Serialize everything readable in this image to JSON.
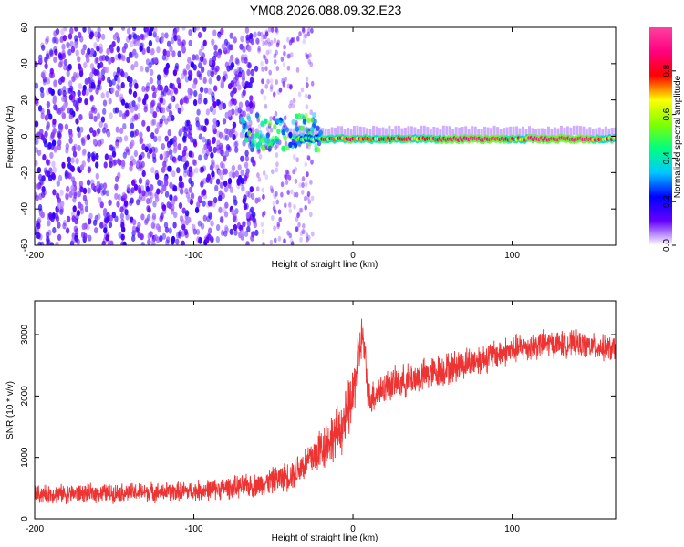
{
  "title": "YM08.2026.088.09.32.E23",
  "chart_data": [
    {
      "type": "heatmap",
      "title": "YM08.2026.088.09.32.E23",
      "xlabel": "Height of straight line (km)",
      "ylabel": "Frequency (Hz)",
      "xlim": [
        -200,
        165
      ],
      "ylim": [
        -60,
        60
      ],
      "xticks": [
        -200,
        -100,
        0,
        100
      ],
      "yticks": [
        60,
        40,
        20,
        0,
        -20,
        -40,
        -60
      ],
      "colorbar": {
        "label": "Normalized spectral amplitude",
        "range": [
          0.0,
          1.0
        ],
        "ticks": [
          0.0,
          0.2,
          0.4,
          0.6,
          0.8
        ],
        "colors": [
          "#ffffff",
          "#6600ff",
          "#0000ff",
          "#00c8ff",
          "#00ff80",
          "#80ff00",
          "#ffff00",
          "#ff0000",
          "#ff0080",
          "#ff40a0"
        ]
      },
      "features": [
        {
          "region": "x -200 to -60",
          "description": "broadband noise",
          "amplitude": 0.1
        },
        {
          "region": "x -70 to -20",
          "center_hz": 2,
          "amplitude": 0.5
        },
        {
          "region": "x -20 to 165",
          "center_hz": -2,
          "amplitude_peak": 0.95
        }
      ]
    },
    {
      "type": "line",
      "title": "",
      "xlabel": "Height of straight line (km)",
      "ylabel": "SNR (10 * v/v)",
      "xlim": [
        -200,
        165
      ],
      "ylim": [
        0,
        3550
      ],
      "xticks": [
        -200,
        -100,
        0,
        100
      ],
      "yticks": [
        0,
        1000,
        2000,
        3000
      ],
      "series": [
        {
          "name": "SNR",
          "color": "#ee3333",
          "x": [
            -200,
            -150,
            -100,
            -60,
            -40,
            -30,
            -20,
            -10,
            -5,
            0,
            3,
            6,
            10,
            20,
            40,
            60,
            80,
            100,
            120,
            140,
            165
          ],
          "y": [
            400,
            420,
            450,
            550,
            700,
            900,
            1150,
            1400,
            1600,
            2000,
            2600,
            3000,
            1950,
            2150,
            2300,
            2450,
            2600,
            2750,
            2850,
            2850,
            2750
          ],
          "noise": [
            250,
            260,
            270,
            320,
            400,
            500,
            650,
            700,
            800,
            800,
            700,
            600,
            500,
            450,
            450,
            450,
            420,
            400,
            380,
            350,
            350
          ]
        }
      ]
    }
  ]
}
